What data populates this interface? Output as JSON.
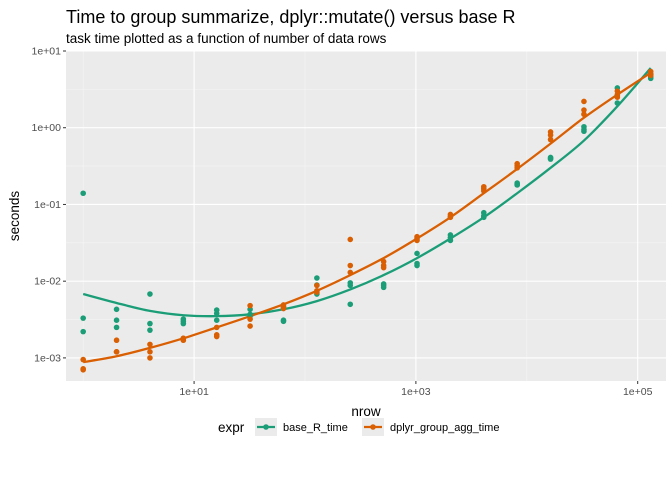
{
  "chart_data": {
    "type": "scatter",
    "title": "Time to group summarize, dplyr::mutate() versus base R",
    "subtitle": "task time plotted as a function of number of data rows",
    "xlabel": "nrow",
    "ylabel": "seconds",
    "x_scale": "log10",
    "y_scale": "log10",
    "xlim": [
      0.7,
      180000
    ],
    "ylim": [
      0.0005,
      10
    ],
    "x_ticks": [
      {
        "value": 10,
        "label": "1e+01"
      },
      {
        "value": 1000,
        "label": "1e+03"
      },
      {
        "value": 100000,
        "label": "1e+05"
      }
    ],
    "y_ticks": [
      {
        "value": 0.001,
        "label": "1e-03"
      },
      {
        "value": 0.01,
        "label": "1e-02"
      },
      {
        "value": 0.1,
        "label": "1e-01"
      },
      {
        "value": 1,
        "label": "1e+00"
      },
      {
        "value": 10,
        "label": "1e+01"
      }
    ],
    "grid": true,
    "legend": {
      "title": "expr",
      "position": "bottom"
    },
    "series": [
      {
        "name": "base_R_time",
        "color": "#1b9e77",
        "points": [
          [
            1,
            0.14
          ],
          [
            1,
            0.0033
          ],
          [
            1,
            0.0022
          ],
          [
            2,
            0.0043
          ],
          [
            2,
            0.0031
          ],
          [
            2,
            0.0025
          ],
          [
            4,
            0.0068
          ],
          [
            4,
            0.0028
          ],
          [
            4,
            0.0023
          ],
          [
            8,
            0.0032
          ],
          [
            8,
            0.003
          ],
          [
            8,
            0.0028
          ],
          [
            16,
            0.0042
          ],
          [
            16,
            0.0038
          ],
          [
            16,
            0.0031
          ],
          [
            32,
            0.0043
          ],
          [
            32,
            0.0037
          ],
          [
            32,
            0.0035
          ],
          [
            64,
            0.0046
          ],
          [
            64,
            0.0031
          ],
          [
            64,
            0.003
          ],
          [
            128,
            0.011
          ],
          [
            128,
            0.0089
          ],
          [
            128,
            0.0068
          ],
          [
            256,
            0.0095
          ],
          [
            256,
            0.0088
          ],
          [
            256,
            0.005
          ],
          [
            512,
            0.0092
          ],
          [
            512,
            0.0088
          ],
          [
            512,
            0.0083
          ],
          [
            1024,
            0.023
          ],
          [
            1024,
            0.017
          ],
          [
            1024,
            0.016
          ],
          [
            2048,
            0.04
          ],
          [
            2048,
            0.037
          ],
          [
            2048,
            0.034
          ],
          [
            4096,
            0.078
          ],
          [
            4096,
            0.071
          ],
          [
            4096,
            0.068
          ],
          [
            8192,
            0.19
          ],
          [
            8192,
            0.18
          ],
          [
            8192,
            0.18
          ],
          [
            16384,
            0.41
          ],
          [
            16384,
            0.4
          ],
          [
            16384,
            0.39
          ],
          [
            32768,
            1.03
          ],
          [
            32768,
            0.95
          ],
          [
            32768,
            0.9
          ],
          [
            65536,
            3.3
          ],
          [
            65536,
            2.6
          ],
          [
            65536,
            2.1
          ],
          [
            131072,
            5.0
          ],
          [
            131072,
            4.6
          ],
          [
            131072,
            4.4
          ]
        ],
        "fit": [
          [
            1,
            0.0068
          ],
          [
            2,
            0.0052
          ],
          [
            4,
            0.0041
          ],
          [
            8,
            0.0036
          ],
          [
            16,
            0.0035
          ],
          [
            32,
            0.0037
          ],
          [
            64,
            0.0043
          ],
          [
            128,
            0.0055
          ],
          [
            256,
            0.0078
          ],
          [
            512,
            0.012
          ],
          [
            1024,
            0.02
          ],
          [
            2048,
            0.036
          ],
          [
            4096,
            0.068
          ],
          [
            8192,
            0.14
          ],
          [
            16384,
            0.3
          ],
          [
            32768,
            0.68
          ],
          [
            65536,
            1.9
          ],
          [
            131072,
            6.0
          ]
        ]
      },
      {
        "name": "dplyr_group_agg_time",
        "color": "#d95f02",
        "points": [
          [
            1,
            0.00095
          ],
          [
            1,
            0.00072
          ],
          [
            1,
            0.0007
          ],
          [
            2,
            0.0017
          ],
          [
            2,
            0.0012
          ],
          [
            2,
            0.0012
          ],
          [
            4,
            0.0015
          ],
          [
            4,
            0.0012
          ],
          [
            4,
            0.001
          ],
          [
            8,
            0.0018
          ],
          [
            8,
            0.0018
          ],
          [
            8,
            0.0017
          ],
          [
            16,
            0.0025
          ],
          [
            16,
            0.002
          ],
          [
            16,
            0.0019
          ],
          [
            32,
            0.0048
          ],
          [
            32,
            0.0032
          ],
          [
            32,
            0.0026
          ],
          [
            64,
            0.0049
          ],
          [
            64,
            0.0046
          ],
          [
            64,
            0.0044
          ],
          [
            128,
            0.0088
          ],
          [
            128,
            0.0075
          ],
          [
            128,
            0.0072
          ],
          [
            256,
            0.035
          ],
          [
            256,
            0.016
          ],
          [
            256,
            0.013
          ],
          [
            512,
            0.018
          ],
          [
            512,
            0.016
          ],
          [
            512,
            0.015
          ],
          [
            1024,
            0.038
          ],
          [
            1024,
            0.036
          ],
          [
            1024,
            0.034
          ],
          [
            2048,
            0.074
          ],
          [
            2048,
            0.07
          ],
          [
            2048,
            0.068
          ],
          [
            4096,
            0.17
          ],
          [
            4096,
            0.16
          ],
          [
            4096,
            0.15
          ],
          [
            8192,
            0.34
          ],
          [
            8192,
            0.32
          ],
          [
            8192,
            0.3
          ],
          [
            16384,
            0.88
          ],
          [
            16384,
            0.8
          ],
          [
            16384,
            0.7
          ],
          [
            32768,
            2.2
          ],
          [
            32768,
            1.7
          ],
          [
            32768,
            1.5
          ],
          [
            65536,
            3.0
          ],
          [
            65536,
            2.7
          ],
          [
            65536,
            2.5
          ],
          [
            131072,
            5.4
          ],
          [
            131072,
            5.0
          ],
          [
            131072,
            4.8
          ]
        ],
        "fit": [
          [
            1,
            0.00088
          ],
          [
            2,
            0.00105
          ],
          [
            4,
            0.00135
          ],
          [
            8,
            0.0018
          ],
          [
            16,
            0.0025
          ],
          [
            32,
            0.0035
          ],
          [
            64,
            0.005
          ],
          [
            128,
            0.0075
          ],
          [
            256,
            0.012
          ],
          [
            512,
            0.02
          ],
          [
            1024,
            0.036
          ],
          [
            2048,
            0.068
          ],
          [
            4096,
            0.14
          ],
          [
            8192,
            0.29
          ],
          [
            16384,
            0.62
          ],
          [
            32768,
            1.35
          ],
          [
            65536,
            2.7
          ],
          [
            131072,
            5.2
          ]
        ]
      }
    ]
  }
}
